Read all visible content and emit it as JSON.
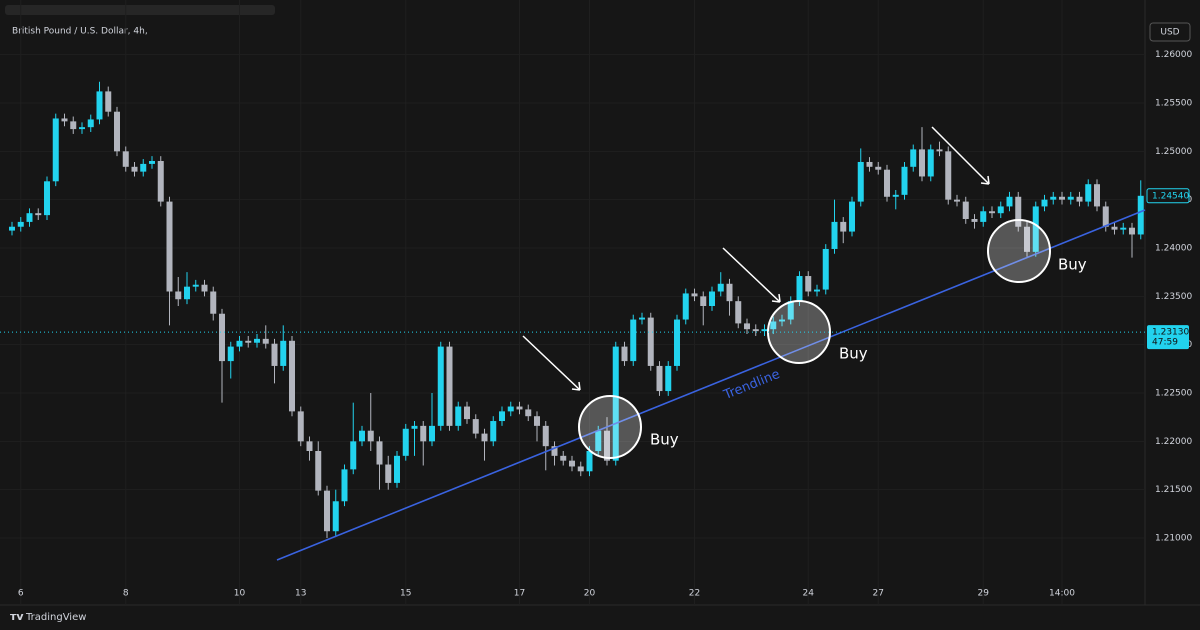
{
  "chart_data": {
    "type": "candlestick",
    "title": "British Pound / U.S. Dollar, 4h,",
    "currency": "USD",
    "brand": "TradingView",
    "trendline_label": "Trendline",
    "signals": [
      "Buy",
      "Buy",
      "Buy"
    ],
    "up_color": "#22d3ee",
    "down_color": "#b2b5be",
    "categories": [
      null,
      "6",
      null,
      null,
      null,
      null,
      null,
      null,
      null,
      null,
      null,
      null,
      null,
      "8",
      null,
      null,
      null,
      null,
      null,
      null,
      null,
      null,
      null,
      null,
      null,
      null,
      "10",
      null,
      null,
      null,
      null,
      null,
      null,
      "13",
      null,
      null,
      null,
      null,
      null,
      null,
      null,
      null,
      null,
      null,
      null,
      "15",
      null,
      null,
      null,
      null,
      null,
      null,
      null,
      null,
      null,
      null,
      null,
      null,
      "17",
      null,
      null,
      null,
      null,
      null,
      null,
      null,
      "20",
      null,
      null,
      null,
      null,
      null,
      null,
      null,
      null,
      null,
      null,
      null,
      "22",
      null,
      null,
      null,
      null,
      null,
      null,
      null,
      null,
      null,
      null,
      null,
      null,
      "24",
      null,
      null,
      null,
      null,
      null,
      null,
      null,
      "27",
      null,
      null,
      null,
      null,
      null,
      null,
      null,
      null,
      null,
      null,
      null,
      "29",
      null,
      null,
      null,
      null,
      null,
      null,
      null,
      null,
      "14:00",
      null,
      null,
      null,
      null,
      null,
      null,
      null,
      null,
      null
    ],
    "open": [
      1.2418,
      1.2422,
      1.2427,
      1.2436,
      1.2434,
      1.2469,
      1.2534,
      1.2531,
      1.2523,
      1.2525,
      1.2533,
      1.2562,
      1.2541,
      1.25,
      1.2484,
      1.2479,
      1.2487,
      1.249,
      1.2448,
      1.2355,
      1.2347,
      1.236,
      1.2362,
      1.2355,
      1.2332,
      1.2283,
      1.2298,
      1.2304,
      1.2302,
      1.2306,
      1.2301,
      1.2278,
      1.2304,
      1.2231,
      1.22,
      1.219,
      1.2149,
      1.2107,
      1.2138,
      1.2171,
      1.22,
      1.2211,
      1.22,
      1.2176,
      1.2157,
      1.2185,
      1.2213,
      1.2216,
      1.22,
      1.2216,
      1.2298,
      1.2216,
      1.2236,
      1.2223,
      1.2208,
      1.22,
      1.2221,
      1.2231,
      1.2236,
      1.2233,
      1.2226,
      1.2216,
      1.2195,
      1.2185,
      1.218,
      1.2174,
      1.2169,
      1.219,
      1.2211,
      1.218,
      1.2298,
      1.2283,
      1.2326,
      1.2328,
      1.2278,
      1.2252,
      1.2278,
      1.2326,
      1.2353,
      1.235,
      1.234,
      1.2355,
      1.2363,
      1.2345,
      1.2322,
      1.2316,
      1.2314,
      1.2316,
      1.2324,
      1.2326,
      1.2345,
      1.2371,
      1.2355,
      1.2357,
      1.2399,
      1.2427,
      1.2417,
      1.2448,
      1.2489,
      1.2484,
      1.2481,
      1.2453,
      1.2455,
      1.2484,
      1.2502,
      1.2474,
      1.2502,
      1.25,
      1.245,
      1.2448,
      1.243,
      1.2427,
      1.2438,
      1.2436,
      1.2443,
      1.2453,
      1.2422,
      1.2396,
      1.2443,
      1.245,
      1.2453,
      1.245,
      1.2453,
      1.2448,
      1.2466,
      1.2443,
      1.2422,
      1.2419,
      1.2421,
      1.2414
    ],
    "high": [
      1.2427,
      1.2432,
      1.2441,
      1.2441,
      1.2474,
      1.2539,
      1.2539,
      1.2536,
      1.253,
      1.2538,
      1.2572,
      1.2567,
      1.2546,
      1.2505,
      1.2489,
      1.2492,
      1.2495,
      1.2495,
      1.2453,
      1.237,
      1.2375,
      1.2367,
      1.2367,
      1.236,
      1.2337,
      1.2303,
      1.2309,
      1.2309,
      1.2311,
      1.232,
      1.2306,
      1.232,
      1.2309,
      1.2236,
      1.2205,
      1.22,
      1.2154,
      1.215,
      1.2176,
      1.224,
      1.2216,
      1.225,
      1.2205,
      1.2185,
      1.219,
      1.2218,
      1.2221,
      1.2221,
      1.225,
      1.2303,
      1.2303,
      1.2241,
      1.2241,
      1.2228,
      1.2213,
      1.2226,
      1.2236,
      1.2241,
      1.2241,
      1.2238,
      1.2231,
      1.2221,
      1.22,
      1.219,
      1.2185,
      1.2179,
      1.2195,
      1.2216,
      1.2225,
      1.2303,
      1.2303,
      1.2331,
      1.2333,
      1.2333,
      1.2283,
      1.2283,
      1.2331,
      1.2358,
      1.2358,
      1.2355,
      1.236,
      1.2375,
      1.2368,
      1.235,
      1.2327,
      1.2321,
      1.2321,
      1.2329,
      1.2331,
      1.235,
      1.2376,
      1.2376,
      1.2362,
      1.2404,
      1.245,
      1.2432,
      1.2453,
      1.2503,
      1.2494,
      1.2489,
      1.2486,
      1.246,
      1.2489,
      1.2507,
      1.2525,
      1.2507,
      1.251,
      1.2505,
      1.2455,
      1.2453,
      1.2435,
      1.2443,
      1.2443,
      1.2448,
      1.2458,
      1.2458,
      1.2427,
      1.2448,
      1.2455,
      1.2458,
      1.2458,
      1.2458,
      1.2458,
      1.2471,
      1.2471,
      1.2448,
      1.2427,
      1.2426,
      1.2426,
      1.247
    ],
    "low": [
      1.2413,
      1.2417,
      1.2422,
      1.2429,
      1.2429,
      1.2464,
      1.2526,
      1.2518,
      1.2518,
      1.252,
      1.2528,
      1.2536,
      1.2495,
      1.2479,
      1.2474,
      1.2474,
      1.2482,
      1.2443,
      1.232,
      1.234,
      1.2342,
      1.2355,
      1.235,
      1.2325,
      1.224,
      1.2265,
      1.2293,
      1.2297,
      1.2297,
      1.2296,
      1.226,
      1.2273,
      1.2226,
      1.2195,
      1.218,
      1.2144,
      1.21,
      1.2102,
      1.2133,
      1.2166,
      1.2195,
      1.219,
      1.215,
      1.215,
      1.2152,
      1.218,
      1.2185,
      1.2175,
      1.2195,
      1.2211,
      1.2211,
      1.2211,
      1.2218,
      1.2203,
      1.218,
      1.2195,
      1.2216,
      1.2226,
      1.2228,
      1.2221,
      1.22,
      1.217,
      1.2175,
      1.2175,
      1.2169,
      1.2164,
      1.2164,
      1.2185,
      1.2175,
      1.2175,
      1.2278,
      1.2278,
      1.2321,
      1.2273,
      1.2247,
      1.2247,
      1.2273,
      1.2321,
      1.2345,
      1.232,
      1.2335,
      1.235,
      1.233,
      1.2317,
      1.2311,
      1.2309,
      1.2309,
      1.2311,
      1.2319,
      1.2321,
      1.234,
      1.235,
      1.235,
      1.2352,
      1.2394,
      1.2405,
      1.2412,
      1.2443,
      1.2479,
      1.2476,
      1.2448,
      1.244,
      1.245,
      1.2479,
      1.2469,
      1.2469,
      1.2495,
      1.2445,
      1.2443,
      1.2425,
      1.242,
      1.2422,
      1.2431,
      1.2431,
      1.2438,
      1.2417,
      1.2391,
      1.2391,
      1.2438,
      1.2445,
      1.2445,
      1.2445,
      1.2443,
      1.2443,
      1.2438,
      1.2417,
      1.2414,
      1.2414,
      1.239,
      1.2409
    ],
    "close": [
      1.2422,
      1.2427,
      1.2436,
      1.2434,
      1.2469,
      1.2534,
      1.2531,
      1.2523,
      1.2525,
      1.2533,
      1.2562,
      1.2541,
      1.25,
      1.2484,
      1.2479,
      1.2487,
      1.249,
      1.2448,
      1.2355,
      1.2347,
      1.236,
      1.2362,
      1.2355,
      1.2332,
      1.2283,
      1.2298,
      1.2304,
      1.2302,
      1.2306,
      1.2301,
      1.2278,
      1.2304,
      1.2231,
      1.22,
      1.219,
      1.2149,
      1.2107,
      1.2138,
      1.2171,
      1.22,
      1.2211,
      1.22,
      1.2176,
      1.2157,
      1.2185,
      1.2213,
      1.2216,
      1.22,
      1.2216,
      1.2298,
      1.2216,
      1.2236,
      1.2223,
      1.2208,
      1.22,
      1.2221,
      1.2231,
      1.2236,
      1.2233,
      1.2226,
      1.2216,
      1.2195,
      1.2185,
      1.218,
      1.2174,
      1.2169,
      1.219,
      1.2211,
      1.218,
      1.2298,
      1.2283,
      1.2326,
      1.2328,
      1.2278,
      1.2252,
      1.2278,
      1.2326,
      1.2353,
      1.235,
      1.234,
      1.2355,
      1.2363,
      1.2345,
      1.2322,
      1.2316,
      1.2314,
      1.2316,
      1.2324,
      1.2326,
      1.2345,
      1.2371,
      1.2355,
      1.2357,
      1.2399,
      1.2427,
      1.2417,
      1.2448,
      1.2489,
      1.2484,
      1.2481,
      1.2453,
      1.2455,
      1.2484,
      1.2502,
      1.2474,
      1.2502,
      1.25,
      1.245,
      1.2448,
      1.243,
      1.2427,
      1.2438,
      1.2436,
      1.2443,
      1.2453,
      1.2422,
      1.2396,
      1.2443,
      1.245,
      1.2453,
      1.245,
      1.2453,
      1.2448,
      1.2466,
      1.2443,
      1.2422,
      1.2419,
      1.2421,
      1.2414,
      1.2454
    ],
    "ylim": [
      1.204,
      1.264
    ],
    "yticks": [
      {
        "value": 1.21,
        "label": "1.21000"
      },
      {
        "value": 1.215,
        "label": "1.21500"
      },
      {
        "value": 1.22,
        "label": "1.22000"
      },
      {
        "value": 1.225,
        "label": "1.22500"
      },
      {
        "value": 1.23,
        "label": "1.23000"
      },
      {
        "value": 1.235,
        "label": "1.23500"
      },
      {
        "value": 1.24,
        "label": "1.24000"
      },
      {
        "value": 1.245,
        "label": "1.24500"
      },
      {
        "value": 1.25,
        "label": "1.25000"
      },
      {
        "value": 1.255,
        "label": "1.25500"
      },
      {
        "value": 1.26,
        "label": "1.26000"
      }
    ],
    "last_price": {
      "value": 1.2454,
      "label": "1.24540"
    },
    "price_line": {
      "value": 1.2313,
      "label": "1.23130",
      "countdown": "47:59"
    }
  }
}
